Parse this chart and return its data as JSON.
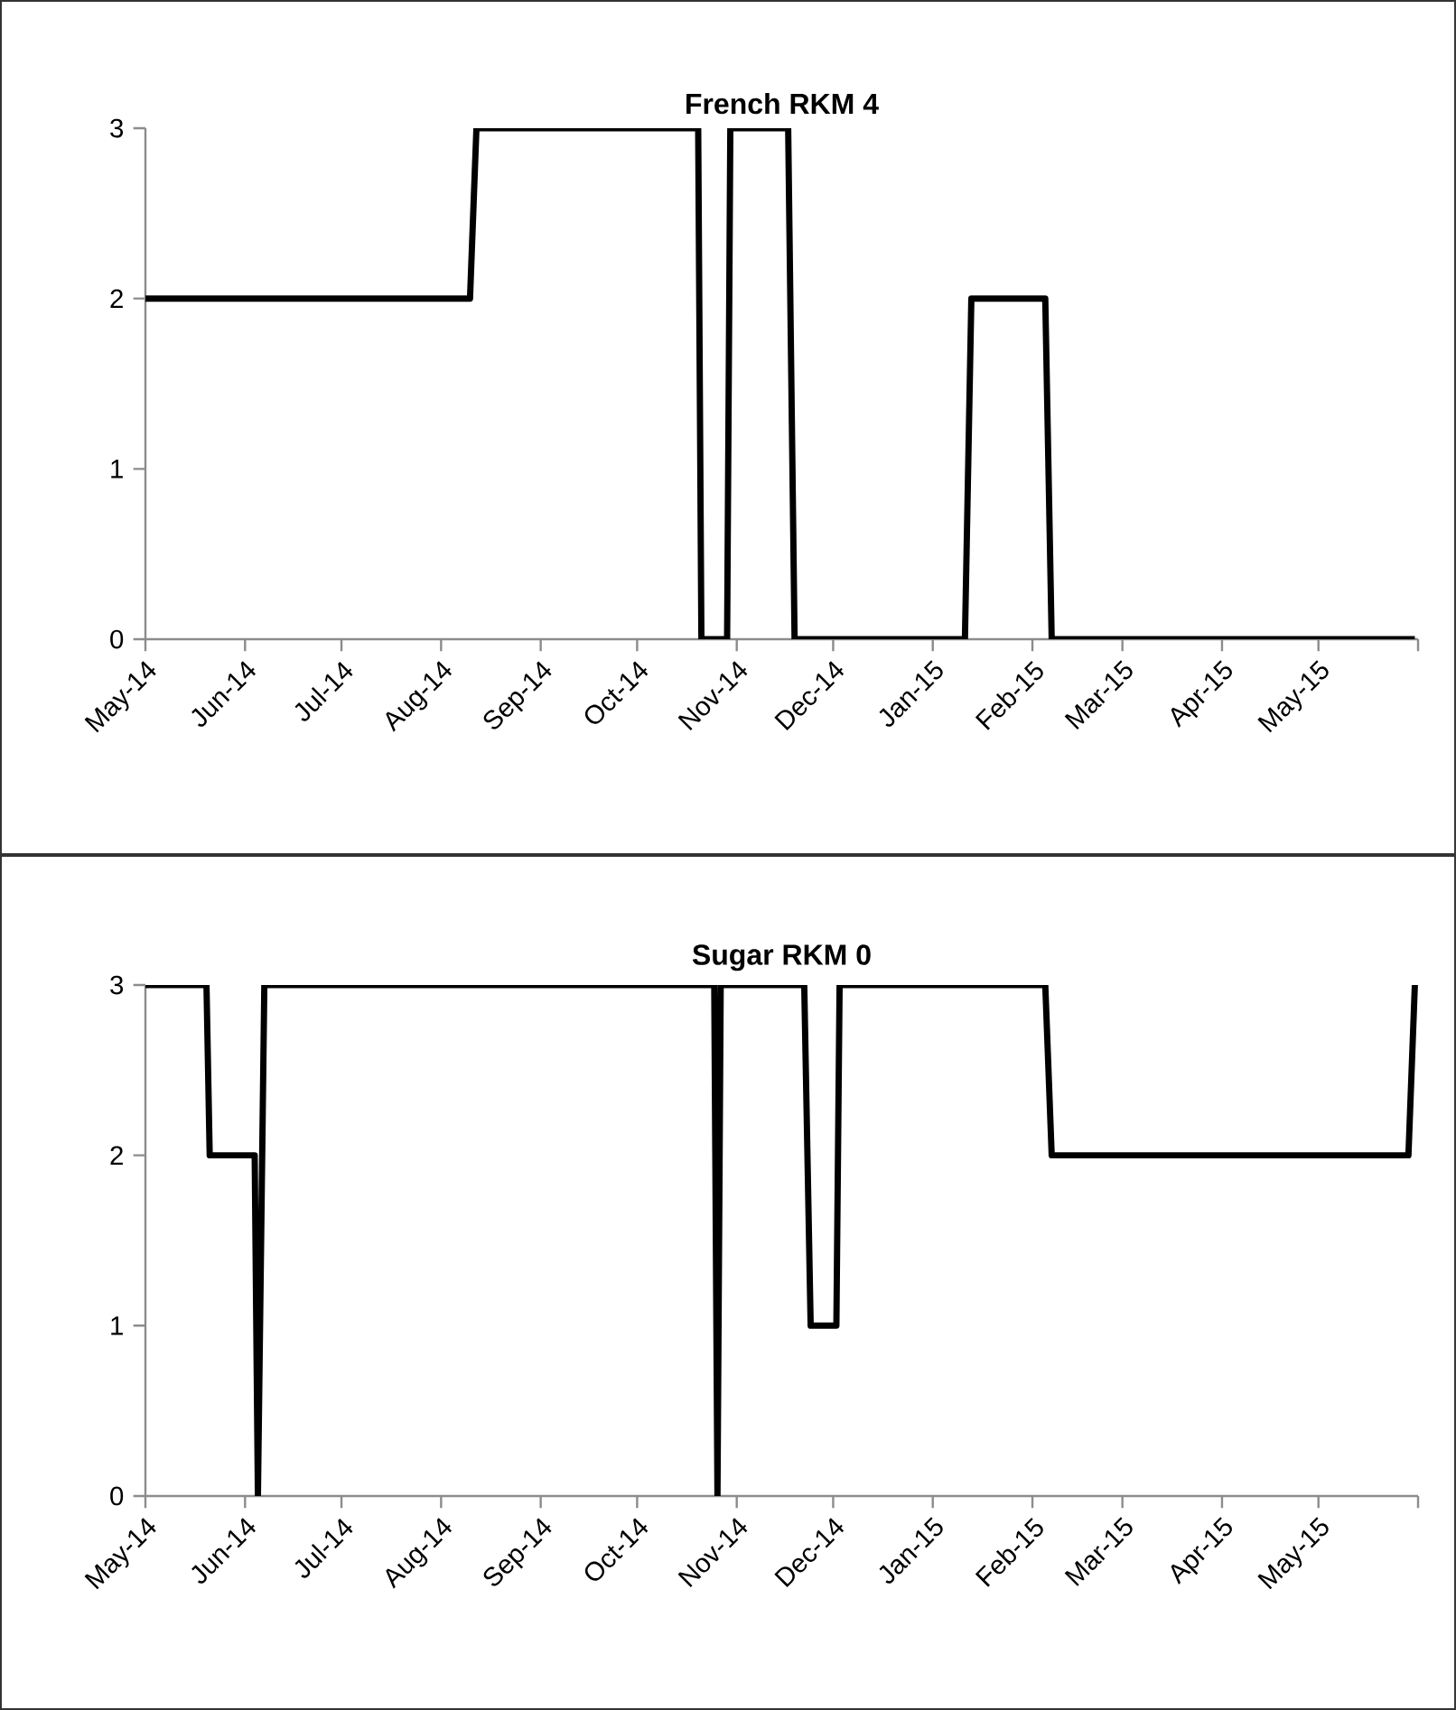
{
  "chart_data": [
    {
      "type": "line",
      "title": "**French RKM 4**",
      "x": [
        "2014-05-01",
        "2014-08-10",
        "2014-08-12",
        "2014-10-20",
        "2014-10-21",
        "2014-10-29",
        "2014-10-30",
        "2014-11-17",
        "2014-11-19",
        "2015-01-11",
        "2015-01-13",
        "2015-02-05",
        "2015-02-07",
        "2015-05-31"
      ],
      "series": [
        {
          "color": "#000000",
          "values": [
            2,
            2,
            3,
            3,
            0,
            0,
            3,
            3,
            0,
            0,
            2,
            2,
            0,
            0
          ]
        }
      ],
      "xlim": [
        "2014-05-01",
        "2015-06-01"
      ],
      "xticks": [
        {
          "value": "2014-05-01",
          "label": "May-14"
        },
        {
          "value": "2014-06-01",
          "label": "Jun-14"
        },
        {
          "value": "2014-07-01",
          "label": "Jul-14"
        },
        {
          "value": "2014-08-01",
          "label": "Aug-14"
        },
        {
          "value": "2014-09-01",
          "label": "Sep-14"
        },
        {
          "value": "2014-10-01",
          "label": "Oct-14"
        },
        {
          "value": "2014-11-01",
          "label": "Nov-14"
        },
        {
          "value": "2014-12-01",
          "label": "Dec-14"
        },
        {
          "value": "2015-01-01",
          "label": "Jan-15"
        },
        {
          "value": "2015-02-01",
          "label": "Feb-15"
        },
        {
          "value": "2015-03-01",
          "label": "Mar-15"
        },
        {
          "value": "2015-04-01",
          "label": "Apr-15"
        },
        {
          "value": "2015-05-01",
          "label": "May-15"
        },
        {
          "value": "2015-06-01",
          "label": null
        }
      ],
      "ylim": [
        0,
        3
      ],
      "yticks": [
        0,
        1,
        2,
        3
      ],
      "grid": false
    },
    {
      "type": "line",
      "title": "**Sugar RKM 0**",
      "x": [
        "2014-05-01",
        "2014-05-20",
        "2014-05-21",
        "2014-06-04",
        "2014-06-05",
        "2014-06-07",
        "2014-10-25",
        "2014-10-26",
        "2014-10-27",
        "2014-11-22",
        "2014-11-24",
        "2014-12-02",
        "2014-12-03",
        "2015-02-05",
        "2015-02-07",
        "2015-05-29",
        "2015-05-31"
      ],
      "series": [
        {
          "color": "#000000",
          "values": [
            3,
            3,
            2,
            2,
            0,
            3,
            3,
            0,
            3,
            3,
            1,
            1,
            3,
            3,
            2,
            2,
            3
          ]
        }
      ],
      "xlim": [
        "2014-05-01",
        "2015-06-01"
      ],
      "xticks": [
        {
          "value": "2014-05-01",
          "label": "May-14"
        },
        {
          "value": "2014-06-01",
          "label": "Jun-14"
        },
        {
          "value": "2014-07-01",
          "label": "Jul-14"
        },
        {
          "value": "2014-08-01",
          "label": "Aug-14"
        },
        {
          "value": "2014-09-01",
          "label": "Sep-14"
        },
        {
          "value": "2014-10-01",
          "label": "Oct-14"
        },
        {
          "value": "2014-11-01",
          "label": "Nov-14"
        },
        {
          "value": "2014-12-01",
          "label": "Dec-14"
        },
        {
          "value": "2015-01-01",
          "label": "Jan-15"
        },
        {
          "value": "2015-02-01",
          "label": "Feb-15"
        },
        {
          "value": "2015-03-01",
          "label": "Mar-15"
        },
        {
          "value": "2015-04-01",
          "label": "Apr-15"
        },
        {
          "value": "2015-05-01",
          "label": "May-15"
        },
        {
          "value": "2015-06-01",
          "label": null
        }
      ],
      "ylim": [
        0,
        3
      ],
      "yticks": [
        0,
        1,
        2,
        3
      ],
      "grid": false
    }
  ]
}
